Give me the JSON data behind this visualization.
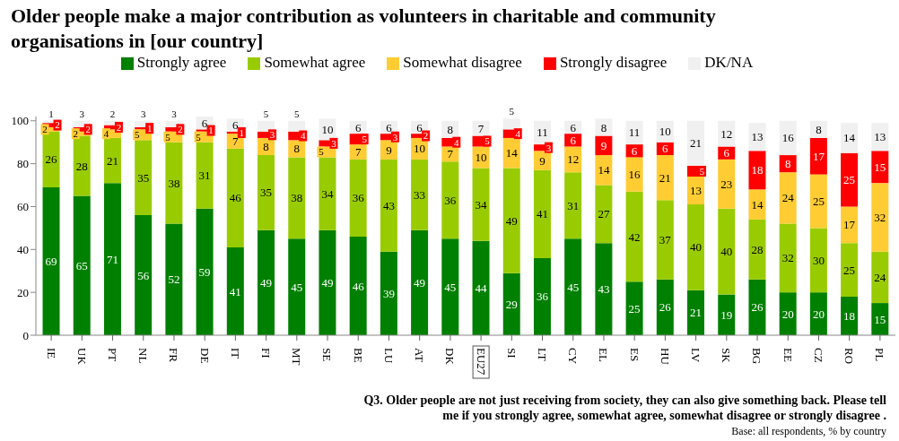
{
  "chart_data": {
    "type": "bar",
    "stacked": true,
    "title": "Older people make a major contribution as volunteers in charitable and community organisations in [our country]",
    "categories": [
      "IE",
      "UK",
      "PT",
      "NL",
      "FR",
      "DE",
      "IT",
      "FI",
      "MT",
      "SE",
      "BE",
      "LU",
      "AT",
      "DK",
      "EU27",
      "SI",
      "LT",
      "CY",
      "EL",
      "ES",
      "HU",
      "LV",
      "SK",
      "BG",
      "EE",
      "CZ",
      "RO",
      "PL"
    ],
    "series": [
      {
        "name": "Strongly agree",
        "color": "#008000",
        "values": [
          69,
          65,
          71,
          56,
          52,
          59,
          41,
          49,
          45,
          49,
          46,
          39,
          49,
          45,
          44,
          29,
          36,
          45,
          43,
          25,
          26,
          21,
          19,
          26,
          20,
          20,
          18,
          15
        ]
      },
      {
        "name": "Somewhat agree",
        "color": "#99cc00",
        "values": [
          26,
          28,
          21,
          35,
          38,
          31,
          46,
          35,
          38,
          34,
          36,
          43,
          33,
          36,
          34,
          49,
          41,
          31,
          27,
          42,
          37,
          40,
          40,
          28,
          32,
          30,
          25,
          24
        ]
      },
      {
        "name": "Somewhat disagree",
        "color": "#ffcc33",
        "values": [
          2,
          2,
          4,
          5,
          5,
          5,
          7,
          8,
          8,
          5,
          7,
          9,
          10,
          7,
          10,
          14,
          9,
          12,
          14,
          16,
          21,
          13,
          23,
          14,
          24,
          25,
          17,
          32
        ]
      },
      {
        "name": "Strongly disagree",
        "color": "#ff0000",
        "values": [
          2,
          2,
          2,
          1,
          2,
          1,
          1,
          3,
          4,
          3,
          5,
          3,
          2,
          4,
          5,
          4,
          3,
          6,
          9,
          6,
          6,
          5,
          6,
          18,
          8,
          17,
          25,
          15
        ]
      },
      {
        "name": "DK/NA",
        "color": "#f0f0f0",
        "values": [
          1,
          3,
          2,
          3,
          3,
          6,
          6,
          5,
          5,
          10,
          6,
          6,
          6,
          8,
          7,
          5,
          11,
          6,
          8,
          11,
          10,
          21,
          12,
          13,
          16,
          8,
          14,
          13
        ]
      }
    ],
    "ylim": [
      0,
      102
    ],
    "yticks": [
      0,
      20,
      40,
      60,
      80,
      100
    ],
    "grid": false,
    "legend": "top",
    "data_labels": true,
    "annotations": [
      "Q3. Older people are not just receiving from society, they can also give something back. Please tell me if you strongly agree, somewhat agree, somewhat disagree or strongly disagree .",
      "Base: all respondents, % by country"
    ]
  }
}
